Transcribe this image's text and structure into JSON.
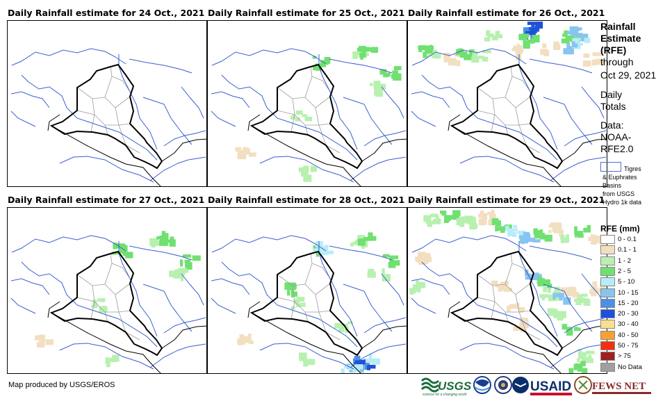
{
  "panels": [
    {
      "title": "Daily Rainfall estimate for 24 Oct., 2021",
      "rain": []
    },
    {
      "title": "Daily Rainfall estimate for 25 Oct., 2021",
      "rain": [
        "light"
      ]
    },
    {
      "title": "Daily Rainfall estimate for 26 Oct., 2021",
      "rain": [
        "north-heavy"
      ]
    },
    {
      "title": "Daily Rainfall estimate for 27 Oct., 2021",
      "rain": [
        "light"
      ]
    },
    {
      "title": "Daily Rainfall estimate for 28 Oct., 2021",
      "rain": [
        "light",
        "south-blue"
      ]
    },
    {
      "title": "Daily Rainfall estimate for 29 Oct., 2021",
      "rain": [
        "widespread"
      ]
    }
  ],
  "side": {
    "title_line1": "Rainfall",
    "title_line2": "Estimate",
    "title_line3": "(RFE)",
    "through": "through",
    "date": "Oct 29, 2021",
    "daily": "Daily",
    "totals": "Totals",
    "data_label": "Data:",
    "data_src1": "NOAA-",
    "data_src2": "RFE2.0",
    "basin_line1": "Tigres",
    "basin_line2": "& Euphrates",
    "basin_line3": "Basins",
    "basin_line4": "from USGS",
    "basin_line5": "Hydro 1k data"
  },
  "legend": {
    "title": "RFE (mm)",
    "items": [
      {
        "label": "0 - 0.1",
        "color": "#ffffff"
      },
      {
        "label": "0.1 - 1",
        "color": "#f2dfc0"
      },
      {
        "label": "1 - 2",
        "color": "#b8f0b0"
      },
      {
        "label": "2 - 5",
        "color": "#70e070"
      },
      {
        "label": "5 - 10",
        "color": "#b8ecf8"
      },
      {
        "label": "10 - 15",
        "color": "#88c4f0"
      },
      {
        "label": "15 - 20",
        "color": "#4a90e8"
      },
      {
        "label": "20 - 30",
        "color": "#1e50d8"
      },
      {
        "label": "30 - 40",
        "color": "#f8e090"
      },
      {
        "label": "40 - 50",
        "color": "#f8a030"
      },
      {
        "label": "50 - 75",
        "color": "#f03010"
      },
      {
        "label": "> 75",
        "color": "#a02020"
      },
      {
        "label": "No Data",
        "color": "#a0a0a0"
      }
    ]
  },
  "footer": {
    "credit": "Map produced by USGS/EROS",
    "logo_usgs": "USGS",
    "logo_usgs_tag": "science for a changing world",
    "logo_usaid": "USAID",
    "logo_fews": "FEWS NET"
  },
  "colors": {
    "river": "#3a5fd0",
    "border": "#000000",
    "province": "#9a9a9a"
  }
}
